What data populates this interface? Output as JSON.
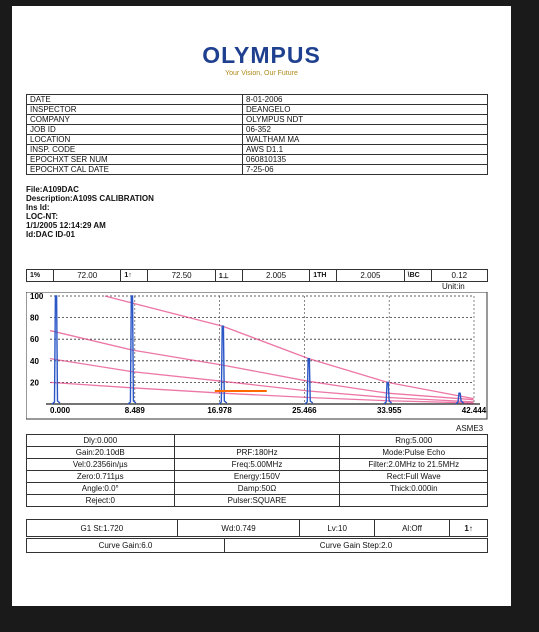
{
  "logo": {
    "brand": "OLYMPUS",
    "tagline": "Your Vision, Our Future"
  },
  "info_rows": [
    {
      "key": "DATE",
      "value": "8-01-2006"
    },
    {
      "key": "INSPECTOR",
      "value": "DEANGELO"
    },
    {
      "key": "COMPANY",
      "value": "OLYMPUS NDT"
    },
    {
      "key": "JOB ID",
      "value": "06-352"
    },
    {
      "key": "LOCATION",
      "value": "WALTHAM MA"
    },
    {
      "key": "INSP. CODE",
      "value": "AWS D1.1"
    },
    {
      "key": "EPOCHXT SER NUM",
      "value": "060810135"
    },
    {
      "key": "EPOCHXT CAL DATE",
      "value": "7-25-06"
    }
  ],
  "meta": [
    "File:A109DAC",
    "Description:A109S CALIBRATION",
    "Ins Id:",
    "LOC-NT:",
    "1/1/2005 12:14:29 AM",
    "Id:DAC ID-01"
  ],
  "gates": [
    {
      "label": "1%",
      "value": "72.00"
    },
    {
      "label": "1↑",
      "value": "72.50"
    },
    {
      "label": "1⊥",
      "value": "2.005"
    },
    {
      "label": "1TH",
      "value": "2.005"
    },
    {
      "label": "\\BC",
      "value": "0.12"
    }
  ],
  "unit_label": "Unit:in",
  "chart_data": {
    "type": "line",
    "x_ticks": [
      "0.000",
      "8.489",
      "16.978",
      "25.466",
      "33.955",
      "42.444"
    ],
    "y_ticks": [
      "100",
      "80",
      "60",
      "40",
      "20"
    ],
    "xlim": [
      0,
      42.444
    ],
    "ylim": [
      0,
      100
    ],
    "echo_peaks": [
      {
        "x": 0.6,
        "y": 100
      },
      {
        "x": 8.2,
        "y": 100
      },
      {
        "x": 17.3,
        "y": 72
      },
      {
        "x": 25.9,
        "y": 42
      },
      {
        "x": 33.8,
        "y": 20
      },
      {
        "x": 41.0,
        "y": 10
      }
    ],
    "curves": [
      {
        "x": [
          5.5,
          17.3,
          25.9,
          33.8,
          42.4
        ],
        "y": [
          100,
          72,
          42,
          20,
          5
        ]
      },
      {
        "x": [
          0,
          8.2,
          17.3,
          25.9,
          33.8,
          42.4
        ],
        "y": [
          68,
          50,
          36,
          21,
          10,
          4
        ]
      },
      {
        "x": [
          0,
          8.2,
          17.3,
          25.9,
          33.8,
          42.4
        ],
        "y": [
          42,
          30,
          21,
          12,
          6,
          2
        ]
      },
      {
        "x": [
          0,
          8.2,
          17.3,
          25.9,
          33.8,
          42.4
        ],
        "y": [
          20,
          15,
          10,
          6,
          3,
          1
        ]
      }
    ],
    "gate": {
      "x_start": 16.5,
      "x_end": 21.7,
      "y": 12
    },
    "colors": {
      "echo": "#2a56c6",
      "curve": "#e64a8a",
      "gate": "#ff6a00"
    }
  },
  "plot_caption": "ASME3",
  "settings": [
    [
      "Dly:0.000",
      "",
      "Rng:5.000"
    ],
    [
      "Gain:20.10dB",
      "PRF:180Hz",
      "Mode:Pulse Echo"
    ],
    [
      "Vel:0.2356in/µs",
      "Freq:5.00MHz",
      "Filter:2.0MHz to 21.5MHz"
    ],
    [
      "Zero:0.711µs",
      "Energy:150V",
      "Rect:Full Wave"
    ],
    [
      "Angle:0.0°",
      "Damp:50Ω",
      "Thick:0.000in"
    ],
    [
      "Reject:0",
      "Pulser:SQUARE",
      ""
    ]
  ],
  "bottom_row": [
    "G1 St:1.720",
    "Wd:0.749",
    "Lv:10",
    "Al:Off",
    "1↑"
  ],
  "curve_row": [
    "Curve Gain:6.0",
    "Curve Gain Step:2.0"
  ]
}
